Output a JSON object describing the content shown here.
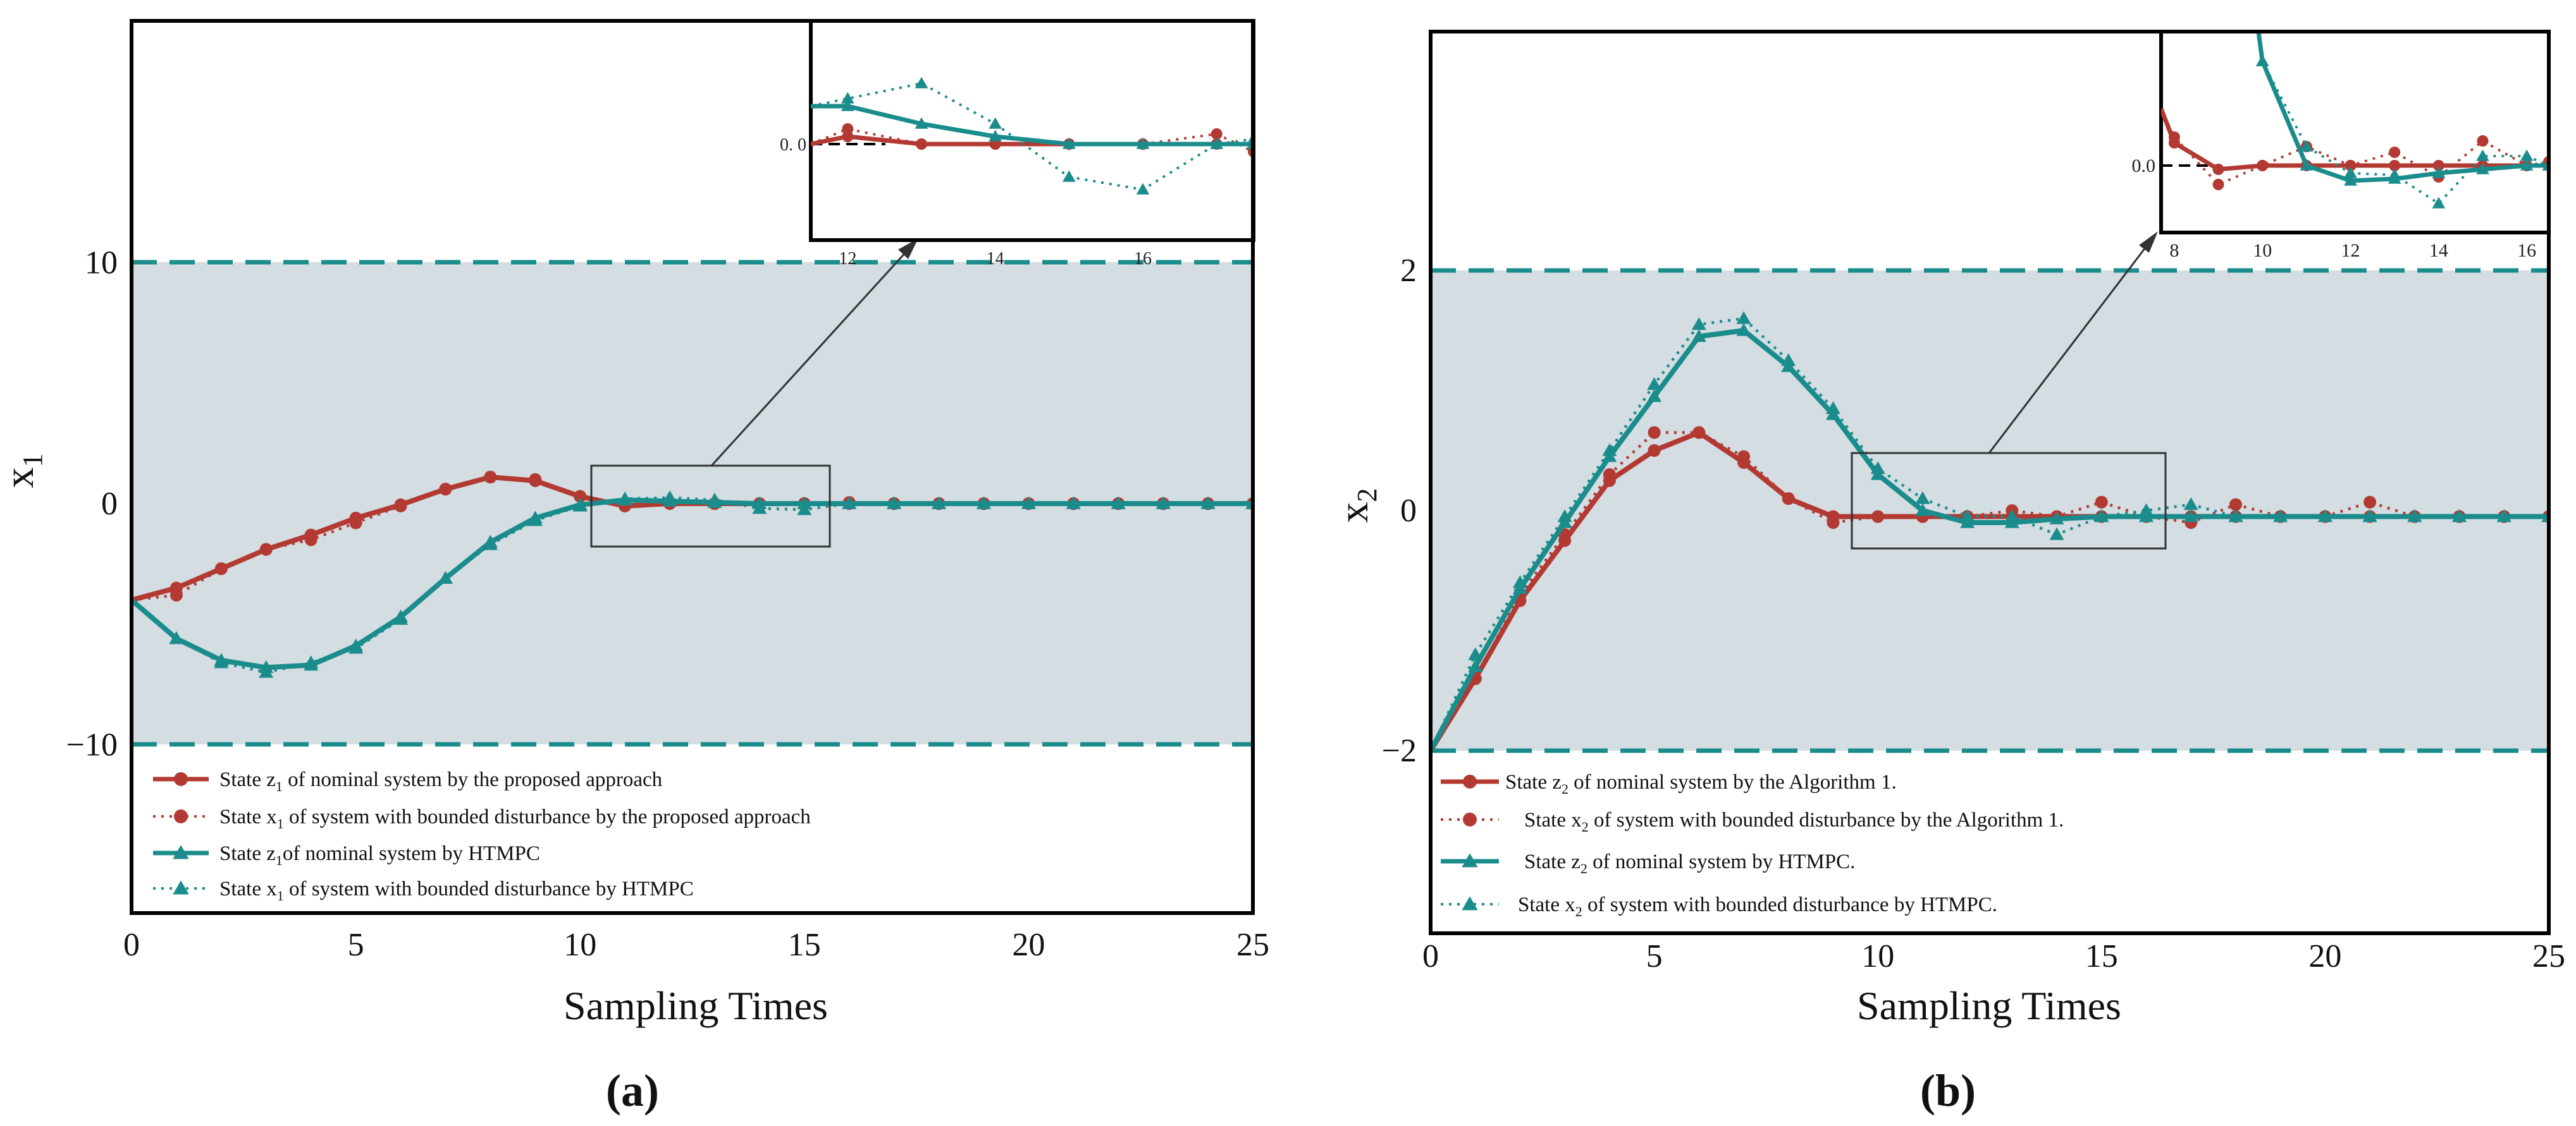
{
  "chart_data": [
    {
      "panel_label": "(a)",
      "type": "line",
      "title": "",
      "xlabel": "Sampling Times",
      "ylabel": "x1",
      "ylabel_main": "x",
      "ylabel_sub": "1",
      "xlim": [
        0,
        25
      ],
      "ylim": [
        -17,
        20
      ],
      "xticks": [
        "0",
        "5",
        "10",
        "15",
        "20",
        "25"
      ],
      "yticks": [
        "−10",
        "0",
        "10"
      ],
      "constraint_bounds": [
        10,
        -10
      ],
      "legend_position": "bottom-left",
      "colors": {
        "red": "#b33a32",
        "teal": "#1a8c8c",
        "band": "#d3dde2"
      },
      "series": [
        {
          "name": "State z1 of nominal system by the proposed approach",
          "legend_pre": "State z",
          "legend_sub": "1",
          "legend_post": " of nominal system by the proposed approach",
          "color": "#b33a32",
          "dash": false,
          "marker": "circle",
          "x": [
            0,
            1,
            2,
            3,
            4,
            5,
            6,
            7,
            8,
            9,
            10,
            11,
            12,
            13,
            14,
            15,
            16,
            17,
            18,
            19,
            20,
            21,
            22,
            23,
            24,
            25
          ],
          "y": [
            -4,
            -3.5,
            -2.7,
            -1.9,
            -1.3,
            -0.6,
            -0.05,
            0.6,
            1.1,
            0.95,
            0.3,
            -0.1,
            0,
            0,
            0,
            0,
            0,
            0,
            0,
            0,
            0,
            0,
            0,
            0,
            0,
            0
          ]
        },
        {
          "name": "State x1 of system with bounded disturbance by the proposed approach",
          "legend_pre": "State x",
          "legend_sub": "1",
          "legend_post": " of system with bounded disturbance by the proposed approach",
          "color": "#b33a32",
          "dash": true,
          "marker": "circle",
          "x": [
            0,
            1,
            2,
            3,
            4,
            5,
            6,
            7,
            8,
            9,
            10,
            11,
            12,
            13,
            14,
            15,
            16,
            17,
            18,
            19,
            20,
            21,
            22,
            23,
            24,
            25
          ],
          "y": [
            -4,
            -3.8,
            -2.7,
            -1.9,
            -1.5,
            -0.8,
            -0.1,
            0.6,
            1.1,
            1.0,
            0.3,
            -0.1,
            0.05,
            0,
            0,
            0,
            0.05,
            0,
            0,
            0,
            0,
            0,
            0,
            0,
            0,
            0
          ]
        },
        {
          "name": "State z1 of nominal system by HTMPC",
          "legend_pre": "State z",
          "legend_sub": "1",
          "legend_post": "of nominal system by HTMPC",
          "color": "#1a8c8c",
          "dash": false,
          "marker": "triangle",
          "x": [
            0,
            1,
            2,
            3,
            4,
            5,
            6,
            7,
            8,
            9,
            10,
            11,
            12,
            13,
            14,
            15,
            16,
            17,
            18,
            19,
            20,
            21,
            22,
            23,
            24,
            25
          ],
          "y": [
            -4,
            -5.6,
            -6.5,
            -6.8,
            -6.7,
            -5.9,
            -4.7,
            -3.1,
            -1.6,
            -0.6,
            -0.05,
            0.15,
            0.1,
            0.05,
            0,
            0,
            0,
            0,
            0,
            0,
            0,
            0,
            0,
            0,
            0,
            0
          ]
        },
        {
          "name": "State x1 of system with bounded disturbance by HTMPC",
          "legend_pre": "State x",
          "legend_sub": "1",
          "legend_post": " of system with bounded disturbance by HTMPC",
          "color": "#1a8c8c",
          "dash": true,
          "marker": "triangle",
          "x": [
            0,
            1,
            2,
            3,
            4,
            5,
            6,
            7,
            8,
            9,
            10,
            11,
            12,
            13,
            14,
            15,
            16,
            17,
            18,
            19,
            20,
            21,
            22,
            23,
            24,
            25
          ],
          "y": [
            -4,
            -5.6,
            -6.6,
            -7.0,
            -6.6,
            -6.0,
            -4.8,
            -3.1,
            -1.7,
            -0.7,
            -0.1,
            0.2,
            0.25,
            0.15,
            -0.2,
            -0.25,
            0,
            0,
            0,
            0,
            0,
            0,
            0,
            0,
            0,
            0
          ]
        }
      ],
      "inset": {
        "xlim": [
          11.5,
          17.5
        ],
        "xticks": [
          "12",
          "14",
          "16"
        ],
        "ytick": "0. 0",
        "series": [
          {
            "x": [
              11.5,
              12,
              13,
              14,
              15,
              16,
              17,
              17.5
            ],
            "y": [
              0,
              0.03,
              0,
              0,
              0,
              0,
              0,
              0
            ]
          },
          {
            "x": [
              11.5,
              12,
              13,
              14,
              15,
              16,
              17,
              17.5
            ],
            "y": [
              0,
              0.06,
              0,
              0,
              0,
              0,
              0.04,
              -0.03
            ]
          },
          {
            "x": [
              11.5,
              12,
              13,
              14,
              15,
              16,
              17,
              17.5
            ],
            "y": [
              0.15,
              0.15,
              0.08,
              0.03,
              0,
              0,
              0,
              0
            ]
          },
          {
            "x": [
              11.5,
              12,
              13,
              14,
              15,
              16,
              17,
              17.5
            ],
            "y": [
              0.15,
              0.18,
              0.24,
              0.08,
              -0.13,
              -0.18,
              0,
              0.02
            ]
          }
        ]
      }
    },
    {
      "panel_label": "(b)",
      "type": "line",
      "title": "",
      "xlabel": "Sampling Times",
      "ylabel": "x2",
      "ylabel_main": "x",
      "ylabel_sub": "2",
      "xlim": [
        0,
        25
      ],
      "ylim": [
        -3.6,
        4.0
      ],
      "xticks": [
        "0",
        "5",
        "10",
        "15",
        "20",
        "25"
      ],
      "yticks": [
        "−2",
        "0",
        "2"
      ],
      "constraint_bounds": [
        2,
        -2
      ],
      "legend_position": "bottom-left",
      "colors": {
        "red": "#b33a32",
        "teal": "#1a8c8c",
        "band": "#d3dde2"
      },
      "series": [
        {
          "name": "State z2 of nominal system by the Algorithm 1.",
          "legend_pre": "State z",
          "legend_sub": "2",
          "legend_post": " of nominal system by the Algorithm 1.",
          "color": "#b33a32",
          "dash": false,
          "marker": "circle",
          "x": [
            0,
            1,
            2,
            3,
            4,
            5,
            6,
            7,
            8,
            9,
            10,
            11,
            12,
            13,
            14,
            15,
            16,
            17,
            18,
            19,
            20,
            21,
            22,
            23,
            24,
            25
          ],
          "y": [
            -2,
            -1.4,
            -0.75,
            -0.25,
            0.25,
            0.5,
            0.65,
            0.4,
            0.1,
            -0.05,
            -0.05,
            -0.05,
            -0.05,
            -0.05,
            -0.05,
            -0.05,
            -0.05,
            -0.05,
            -0.05,
            -0.05,
            -0.05,
            -0.05,
            -0.05,
            -0.05,
            -0.05,
            -0.05
          ]
        },
        {
          "name": "State x2 of system with bounded disturbance by the Algorithm 1.",
          "legend_pre": "State x",
          "legend_sub": "2",
          "legend_post": " of system with bounded disturbance by the Algorithm 1.",
          "color": "#b33a32",
          "dash": true,
          "marker": "circle",
          "x": [
            0,
            1,
            2,
            3,
            4,
            5,
            6,
            7,
            8,
            9,
            10,
            11,
            12,
            13,
            14,
            15,
            16,
            17,
            18,
            19,
            20,
            21,
            22,
            23,
            24,
            25
          ],
          "y": [
            -2,
            -1.4,
            -0.7,
            -0.2,
            0.3,
            0.65,
            0.65,
            0.45,
            0.1,
            -0.1,
            -0.05,
            -0.05,
            -0.05,
            0,
            -0.05,
            0.07,
            -0.05,
            -0.1,
            0.05,
            -0.05,
            -0.05,
            0.07,
            -0.05,
            -0.05,
            -0.05,
            -0.05
          ]
        },
        {
          "name": "State z2 of nominal system by HTMPC.",
          "legend_pre": "State z",
          "legend_sub": "2",
          "legend_post": " of nominal system by HTMPC.",
          "color": "#1a8c8c",
          "dash": false,
          "marker": "triangle",
          "x": [
            0,
            1,
            2,
            3,
            4,
            5,
            6,
            7,
            8,
            9,
            10,
            11,
            12,
            13,
            14,
            15,
            16,
            17,
            18,
            19,
            20,
            21,
            22,
            23,
            24,
            25
          ],
          "y": [
            -2,
            -1.3,
            -0.65,
            -0.1,
            0.45,
            0.95,
            1.45,
            1.5,
            1.2,
            0.8,
            0.3,
            0,
            -0.1,
            -0.1,
            -0.07,
            -0.05,
            -0.05,
            -0.05,
            -0.05,
            -0.05,
            -0.05,
            -0.05,
            -0.05,
            -0.05,
            -0.05,
            -0.05
          ]
        },
        {
          "name": "State x2 of system with bounded disturbance by HTMPC.",
          "legend_pre": "State x",
          "legend_sub": "2",
          "legend_post": " of system with bounded disturbance by HTMPC.",
          "color": "#1a8c8c",
          "dash": true,
          "marker": "triangle",
          "x": [
            0,
            1,
            2,
            3,
            4,
            5,
            6,
            7,
            8,
            9,
            10,
            11,
            12,
            13,
            14,
            15,
            16,
            17,
            18,
            19,
            20,
            21,
            22,
            23,
            24,
            25
          ],
          "y": [
            -2,
            -1.2,
            -0.6,
            -0.05,
            0.5,
            1.05,
            1.55,
            1.6,
            1.25,
            0.85,
            0.35,
            0.1,
            -0.05,
            -0.05,
            -0.2,
            -0.05,
            0,
            0.05,
            -0.05,
            -0.05,
            -0.05,
            -0.05,
            -0.05,
            -0.05,
            -0.05,
            -0.05
          ]
        }
      ],
      "inset": {
        "xlim": [
          7.7,
          16.5
        ],
        "xticks": [
          "8",
          "10",
          "12",
          "14",
          "16"
        ],
        "ytick": "0.0",
        "series": [
          {
            "x": [
              7.7,
              8,
              9,
              10,
              11,
              12,
              13,
              14,
              15,
              16,
              16.5
            ],
            "y": [
              0.3,
              0.12,
              -0.02,
              0,
              0,
              0,
              0,
              0,
              0,
              0,
              0
            ]
          },
          {
            "x": [
              7.7,
              8,
              9,
              10,
              11,
              12,
              13,
              14,
              15,
              16,
              16.5
            ],
            "y": [
              0.3,
              0.15,
              -0.1,
              0,
              0.1,
              0,
              0.07,
              -0.06,
              0.13,
              0,
              0.02
            ]
          },
          {
            "x": [
              9.8,
              10,
              11,
              12,
              13,
              14,
              15,
              16,
              16.5
            ],
            "y": [
              0.9,
              0.55,
              0,
              -0.08,
              -0.07,
              -0.04,
              -0.02,
              0,
              0
            ]
          },
          {
            "x": [
              9.8,
              10,
              11,
              12,
              13,
              14,
              15,
              16,
              16.5
            ],
            "y": [
              0.9,
              0.55,
              0.1,
              -0.04,
              -0.05,
              -0.2,
              0.05,
              0.05,
              0
            ]
          }
        ]
      }
    }
  ]
}
